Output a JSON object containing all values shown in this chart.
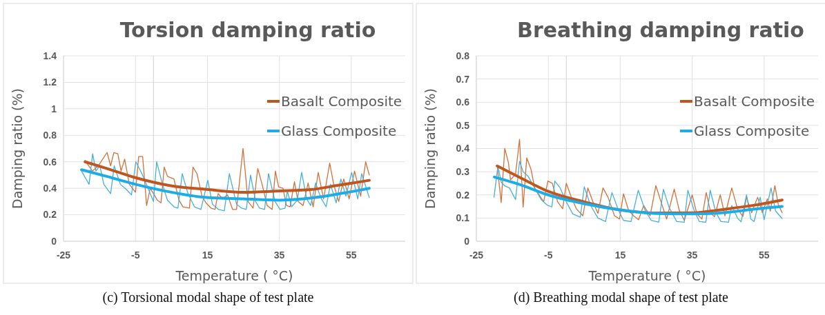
{
  "chart_data": [
    {
      "type": "line",
      "title": "Torsion damping ratio",
      "xlabel": "Temperature ( °C)",
      "ylabel": "Damping ratio (%)",
      "xlim": [
        -25,
        70
      ],
      "xticks": [
        -25,
        -5,
        15,
        35,
        55
      ],
      "ylim": [
        0,
        1.4
      ],
      "yticks": [
        0,
        0.2,
        0.4,
        0.6,
        0.8,
        1,
        1.2,
        1.4
      ],
      "grid": true,
      "legend": "top right",
      "ref_lines": [
        {
          "axis": "x",
          "value": 0,
          "color": "#d0d0d0"
        }
      ],
      "annotations": [
        "(c) Torsional modal shape of test plate"
      ],
      "series": [
        {
          "color": "#d2703a",
          "x": [
            -19,
            -17,
            -15.3,
            -12.9,
            -11.9,
            -11,
            -9.9,
            -9,
            -8,
            -6.7,
            -5,
            -4.1,
            -3,
            -1.9,
            -0.9,
            1.1,
            2.1,
            3,
            3.9,
            5.7,
            7.1,
            8.2,
            10,
            11,
            12.1,
            13.5,
            14.6,
            16,
            17.1,
            18,
            19.2,
            20.6,
            22,
            23.1,
            24.9,
            26.3,
            27.7,
            29,
            30.2,
            31.6,
            33,
            33.9,
            34.8,
            36,
            37,
            38,
            39.2,
            40.2,
            41.6,
            43,
            44.4,
            45.8,
            47.3,
            49,
            50.1,
            51.5,
            52.9,
            54.4,
            55.9,
            57.6,
            59,
            60
          ],
          "values": [
            0.61,
            0.53,
            0.57,
            0.67,
            0.57,
            0.67,
            0.66,
            0.53,
            0.62,
            0.43,
            0.37,
            0.64,
            0.64,
            0.27,
            0.4,
            0.31,
            0.29,
            0.56,
            0.49,
            0.47,
            0.31,
            0.26,
            0.25,
            0.56,
            0.51,
            0.34,
            0.29,
            0.25,
            0.24,
            0.36,
            0.32,
            0.35,
            0.24,
            0.24,
            0.7,
            0.3,
            0.25,
            0.55,
            0.43,
            0.27,
            0.24,
            0.53,
            0.41,
            0.4,
            0.27,
            0.26,
            0.45,
            0.3,
            0.27,
            0.44,
            0.26,
            0.52,
            0.32,
            0.59,
            0.43,
            0.3,
            0.47,
            0.32,
            0.53,
            0.34,
            0.6,
            0.5
          ]
        },
        {
          "color": "#45b0da",
          "x": [
            -20,
            -17.9,
            -16.9,
            -16,
            -14.9,
            -13.8,
            -11.9,
            -10.9,
            -9.2,
            -7.5,
            -6.1,
            -4.9,
            -3.2,
            -1.8,
            0,
            0.9,
            2.5,
            3.9,
            5.7,
            6.8,
            8,
            9.6,
            11.4,
            13.2,
            15.1,
            16.4,
            18.1,
            19.7,
            21.1,
            23.1,
            24.5,
            25.8,
            27,
            28.4,
            29.5,
            30.9,
            32,
            33.8,
            35.2,
            36.6,
            37.2,
            38.4,
            40,
            41.2,
            42.6,
            43.7,
            45.1,
            46.5,
            48,
            49.2,
            50.8,
            52.1,
            53.5,
            55.1,
            56.8,
            57.9,
            60
          ],
          "values": [
            0.53,
            0.43,
            0.66,
            0.53,
            0.57,
            0.43,
            0.36,
            0.57,
            0.43,
            0.39,
            0.35,
            0.6,
            0.51,
            0.42,
            0.3,
            0.6,
            0.43,
            0.31,
            0.26,
            0.25,
            0.51,
            0.36,
            0.26,
            0.24,
            0.46,
            0.28,
            0.24,
            0.23,
            0.51,
            0.28,
            0.25,
            0.24,
            0.5,
            0.3,
            0.25,
            0.24,
            0.51,
            0.3,
            0.24,
            0.25,
            0.38,
            0.26,
            0.31,
            0.52,
            0.32,
            0.27,
            0.44,
            0.33,
            0.26,
            0.43,
            0.29,
            0.47,
            0.34,
            0.52,
            0.32,
            0.51,
            0.33
          ]
        },
        {
          "name": "Basalt Composite",
          "color": "#c0561e",
          "x": [
            -19,
            -13,
            -5,
            4.6,
            15.3,
            24.5,
            35.2,
            43.7,
            50.8,
            60
          ],
          "values": [
            0.6,
            0.55,
            0.48,
            0.42,
            0.39,
            0.37,
            0.38,
            0.39,
            0.42,
            0.46
          ]
        },
        {
          "name": "Glass Composite",
          "color": "#1cace8",
          "x": [
            -20,
            -13,
            -5,
            5,
            15,
            25,
            35,
            45,
            52,
            60
          ],
          "values": [
            0.54,
            0.49,
            0.43,
            0.37,
            0.33,
            0.32,
            0.31,
            0.33,
            0.36,
            0.4
          ]
        }
      ]
    },
    {
      "type": "line",
      "title": "Breathing damping ratio",
      "xlabel": "Temperature ( °C)",
      "ylabel": "Damping ratio (%)",
      "xlim": [
        -25,
        70
      ],
      "xticks": [
        -25,
        -5,
        15,
        35,
        55
      ],
      "ylim": [
        0,
        0.8
      ],
      "yticks": [
        0,
        0.1,
        0.2,
        0.3,
        0.4,
        0.5,
        0.6,
        0.7,
        0.8
      ],
      "grid": true,
      "legend": "top right",
      "ref_lines": [
        {
          "axis": "x",
          "value": 0,
          "color": "#d0d0d0"
        }
      ],
      "annotations": [
        "(d) Breathing modal shape of test plate"
      ],
      "series": [
        {
          "color": "#d2703a",
          "x": [
            -19.2,
            -18.1,
            -17.1,
            -16.1,
            -15.5,
            -14.1,
            -13,
            -12,
            -11,
            -9.8,
            -8.8,
            -6.3,
            -5.1,
            -3.9,
            -2.4,
            -1,
            0,
            1.4,
            2.8,
            4.6,
            6,
            7.4,
            8.8,
            10.2,
            11.6,
            13.4,
            14.8,
            15.9,
            17.3,
            18.7,
            20.1,
            21.5,
            23.3,
            24.9,
            26.4,
            27.9,
            30,
            31.4,
            32.8,
            35,
            36.3,
            37.7,
            38.9,
            40.2,
            41.2,
            42.8,
            44.1,
            46,
            47.6,
            49.1,
            50.1,
            51.5,
            53.2,
            54.5,
            55.9,
            56.7,
            58,
            58.9,
            60
          ],
          "values": [
            0.325,
            0.167,
            0.4,
            0.34,
            0.265,
            0.29,
            0.44,
            0.147,
            0.36,
            0.31,
            0.23,
            0.17,
            0.26,
            0.25,
            0.17,
            0.14,
            0.25,
            0.19,
            0.14,
            0.11,
            0.23,
            0.17,
            0.12,
            0.23,
            0.19,
            0.11,
            0.096,
            0.205,
            0.134,
            0.11,
            0.093,
            0.154,
            0.11,
            0.24,
            0.167,
            0.096,
            0.225,
            0.134,
            0.09,
            0.2,
            0.118,
            0.096,
            0.21,
            0.12,
            0.106,
            0.2,
            0.11,
            0.23,
            0.14,
            0.107,
            0.19,
            0.123,
            0.19,
            0.123,
            0.183,
            0.13,
            0.24,
            0.16,
            0.123
          ]
        },
        {
          "color": "#45b0da",
          "x": [
            -20.1,
            -19,
            -18.1,
            -17.2,
            -15.8,
            -14.1,
            -13,
            -12,
            -10.6,
            -8.8,
            -7,
            -5.3,
            -4,
            -3.2,
            -1.7,
            0,
            1.8,
            3.9,
            5,
            6.7,
            8.8,
            10.9,
            12.7,
            14.5,
            15.9,
            18,
            20,
            21.9,
            23.6,
            25.7,
            27,
            28.6,
            30.7,
            32.8,
            33.8,
            35.6,
            37,
            38.8,
            40,
            41.6,
            43,
            45.1,
            46,
            47.6,
            48.6,
            50.1,
            51.3,
            52.2,
            53.9,
            55,
            56.9,
            58.2,
            60
          ],
          "values": [
            0.19,
            0.325,
            0.255,
            0.24,
            0.23,
            0.18,
            0.345,
            0.3,
            0.28,
            0.23,
            0.18,
            0.156,
            0.148,
            0.26,
            0.23,
            0.17,
            0.118,
            0.104,
            0.235,
            0.156,
            0.1,
            0.085,
            0.21,
            0.134,
            0.09,
            0.085,
            0.22,
            0.134,
            0.09,
            0.082,
            0.224,
            0.145,
            0.085,
            0.082,
            0.22,
            0.13,
            0.085,
            0.082,
            0.22,
            0.123,
            0.085,
            0.082,
            0.154,
            0.1,
            0.084,
            0.2,
            0.096,
            0.085,
            0.19,
            0.093,
            0.23,
            0.13,
            0.098
          ]
        },
        {
          "name": "Basalt Composite",
          "color": "#c0561e",
          "x": [
            -19.2,
            -13,
            -5,
            5,
            15,
            25,
            35,
            45,
            52,
            60
          ],
          "values": [
            0.325,
            0.276,
            0.215,
            0.17,
            0.135,
            0.122,
            0.123,
            0.14,
            0.155,
            0.178
          ]
        },
        {
          "name": "Glass Composite",
          "color": "#1cace8",
          "x": [
            -20,
            -13,
            -5,
            5,
            15,
            25,
            35,
            45,
            52,
            60
          ],
          "values": [
            0.277,
            0.245,
            0.2,
            0.162,
            0.135,
            0.12,
            0.118,
            0.125,
            0.138,
            0.15
          ]
        }
      ]
    }
  ]
}
